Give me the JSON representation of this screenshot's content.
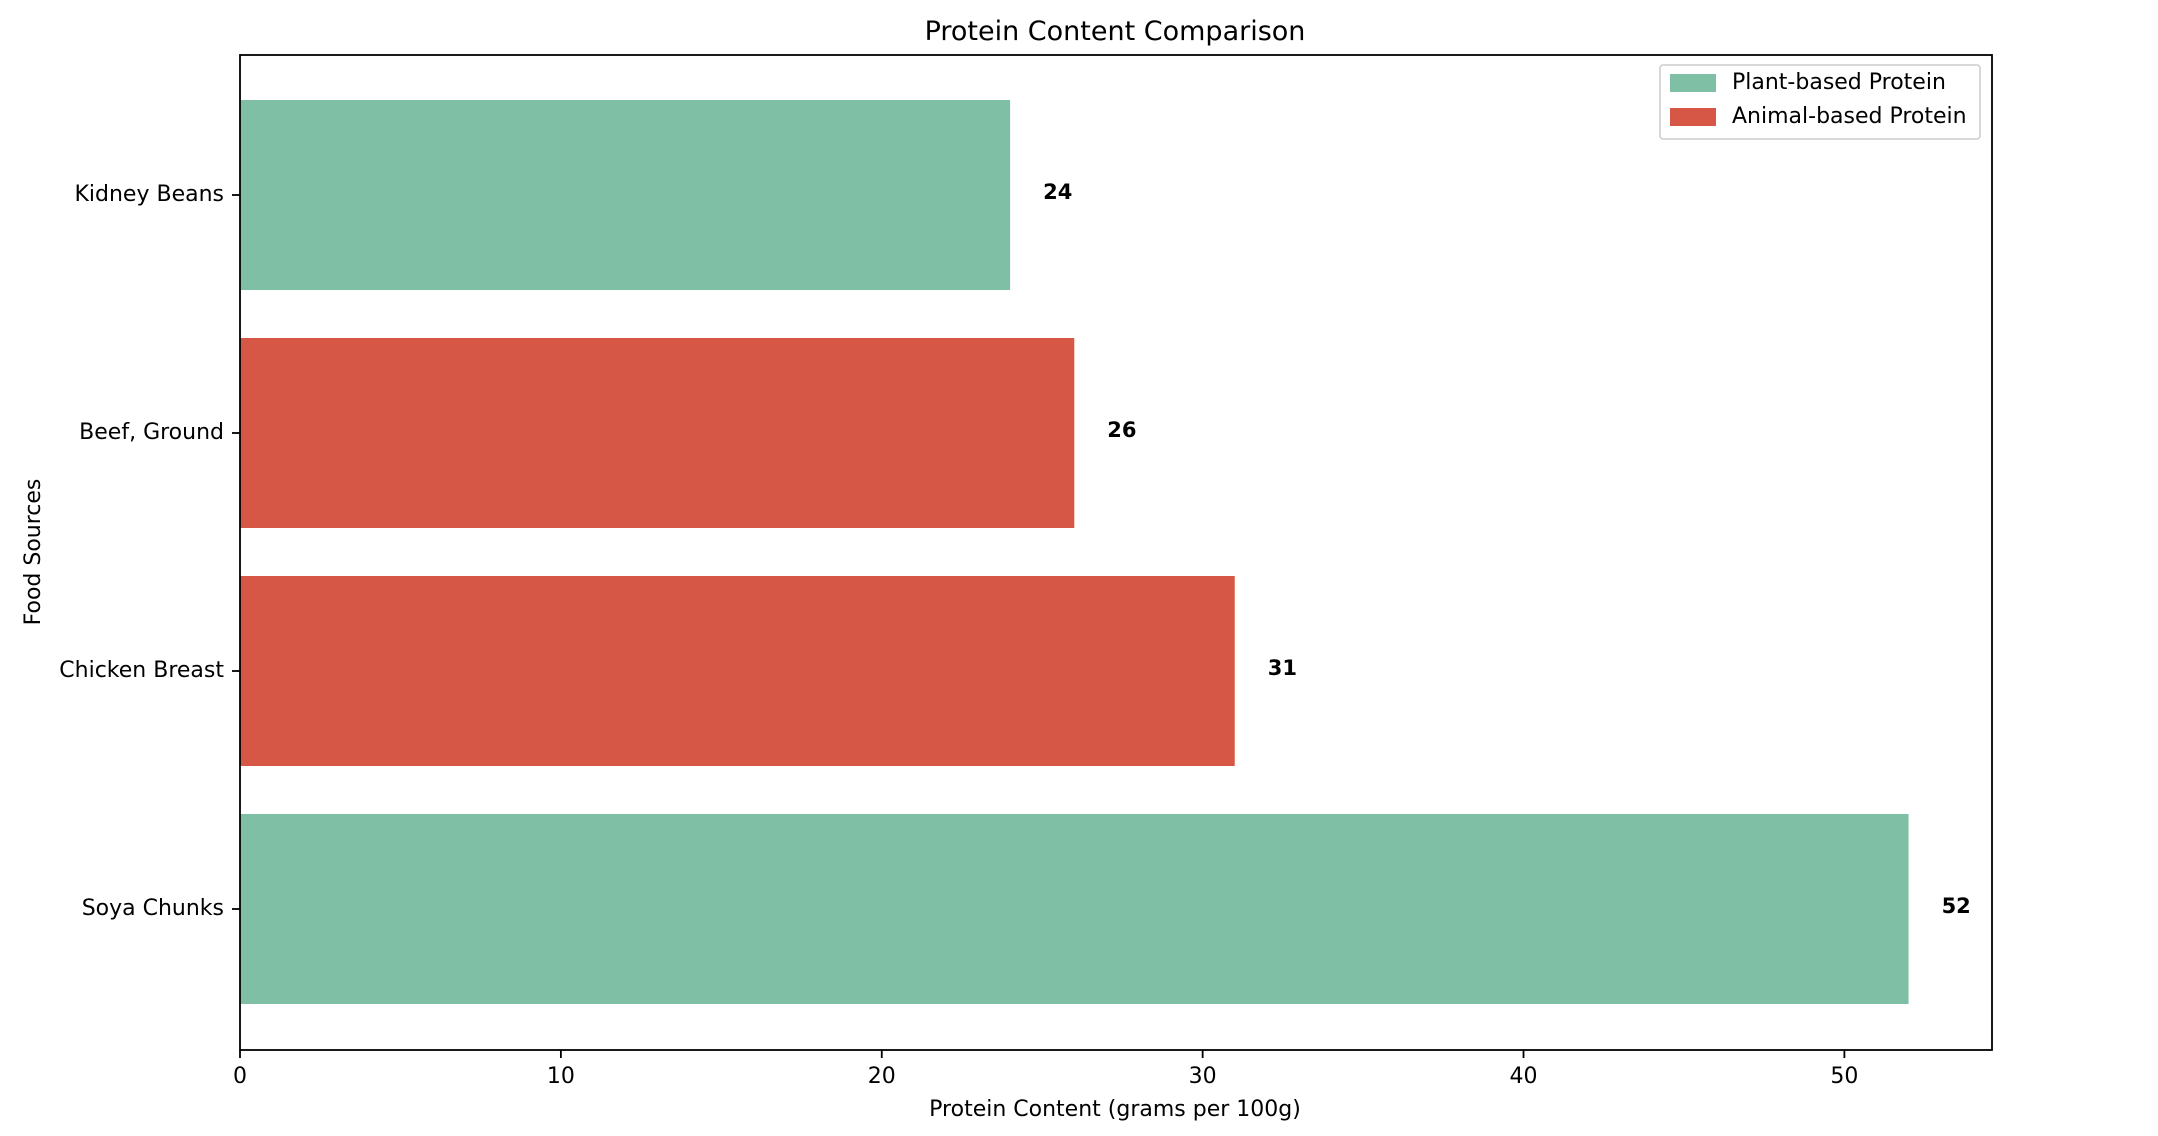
{
  "chart_data": {
    "type": "bar",
    "orientation": "horizontal",
    "title": "Protein Content Comparison",
    "xlabel": "Protein Content (grams per 100g)",
    "ylabel": "Food Sources",
    "xlim": [
      0,
      54.6
    ],
    "xticks": [
      0,
      10,
      20,
      30,
      40,
      50
    ],
    "grid": false,
    "legend_position": "top-right",
    "categories": [
      "Kidney Beans",
      "Beef, Ground",
      "Chicken Breast",
      "Soya Chunks"
    ],
    "values": [
      24,
      26,
      31,
      52
    ],
    "groups": [
      "Plant-based Protein",
      "Animal-based Protein",
      "Animal-based Protein",
      "Plant-based Protein"
    ],
    "value_labels": [
      "24",
      "26",
      "31",
      "52"
    ],
    "legend": [
      {
        "name": "Plant-based Protein",
        "color": "#7fbfa6"
      },
      {
        "name": "Animal-based Protein",
        "color": "#d65745"
      }
    ],
    "colors": {
      "Plant-based Protein": "#7fbfa6",
      "Animal-based Protein": "#d65745"
    }
  }
}
